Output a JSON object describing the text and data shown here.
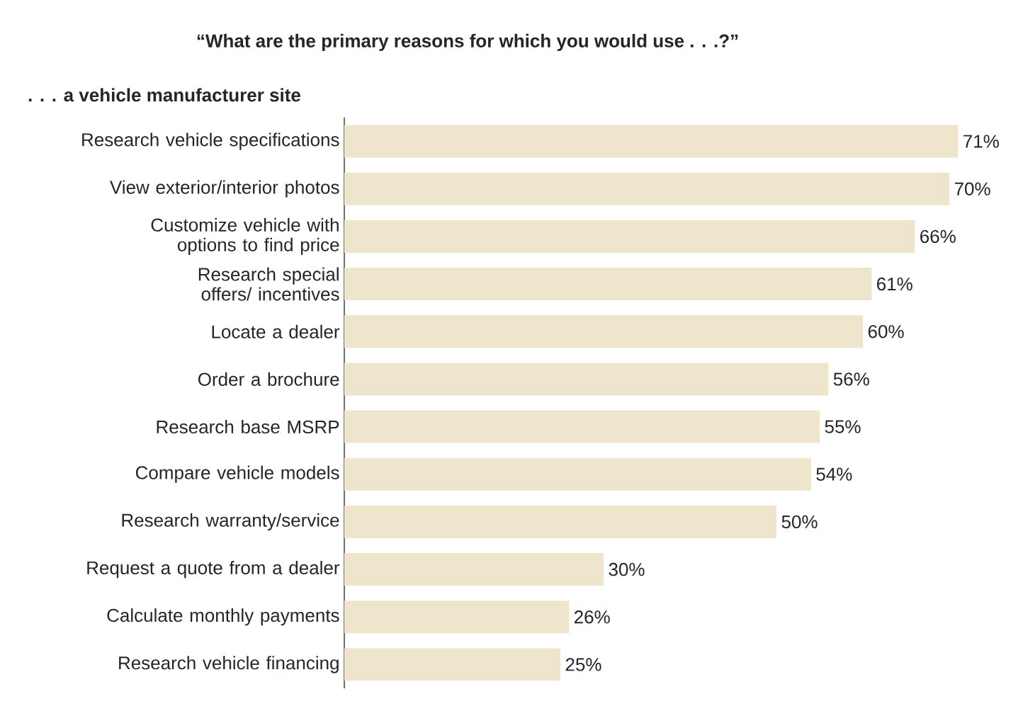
{
  "chart_data": {
    "type": "bar",
    "orientation": "horizontal",
    "title": "“What are the primary reasons for which you would use . . .?”",
    "subtitle": ". . . a vehicle manufacturer site",
    "categories": [
      "Research vehicle specifications",
      "View exterior/interior photos",
      "Customize vehicle with options to find price",
      "Research special offers/ incentives",
      "Locate a dealer",
      "Order a brochure",
      "Research base MSRP",
      "Compare vehicle models",
      "Research warranty/service",
      "Request a quote from a dealer",
      "Calculate monthly payments",
      "Research vehicle financing"
    ],
    "values": [
      71,
      70,
      66,
      61,
      60,
      56,
      55,
      54,
      50,
      30,
      26,
      25
    ],
    "value_labels": [
      "71%",
      "70%",
      "66%",
      "61%",
      "60%",
      "56%",
      "55%",
      "54%",
      "50%",
      "30%",
      "26%",
      "25%"
    ],
    "color": "#efe4cc"
  }
}
